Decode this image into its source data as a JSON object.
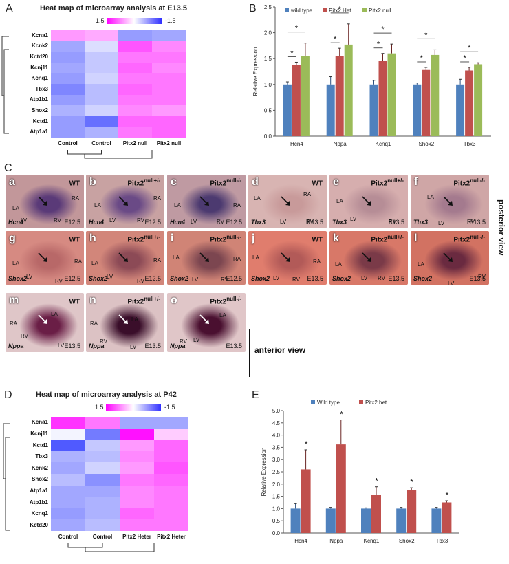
{
  "panels": {
    "A": "A",
    "B": "B",
    "C": "C",
    "D": "D",
    "E": "E"
  },
  "heatmap_A": {
    "title": "Heat map of microarray analysis at E13.5",
    "scale_max": "1.5",
    "scale_min": "-1.5",
    "genes": [
      "Kcna1",
      "Kcnk2",
      "Kctd20",
      "Kcnj11",
      "Kcnq1",
      "Tbx3",
      "Atp1b1",
      "Shox2",
      "Kctd1",
      "Atp1a1"
    ],
    "columns": [
      "Control",
      "Control",
      "Pitx2 null",
      "Pitx2 null"
    ],
    "values": [
      [
        0.6,
        0.5,
        -0.9,
        -0.8
      ],
      [
        -0.8,
        -0.3,
        1.0,
        0.7
      ],
      [
        -0.9,
        -0.5,
        0.8,
        0.8
      ],
      [
        -0.8,
        -0.5,
        0.9,
        0.7
      ],
      [
        -0.9,
        -0.4,
        0.8,
        0.8
      ],
      [
        -1.1,
        -0.6,
        0.9,
        0.8
      ],
      [
        -0.9,
        -0.6,
        0.8,
        0.8
      ],
      [
        -0.7,
        -0.4,
        0.7,
        0.6
      ],
      [
        -0.9,
        -1.3,
        0.9,
        0.9
      ],
      [
        -0.9,
        -0.7,
        0.8,
        0.9
      ]
    ]
  },
  "heatmap_D": {
    "title": "Heat map of microarray analysis at P42",
    "scale_max": "1.5",
    "scale_min": "-1.5",
    "genes": [
      "Kcna1",
      "Kcnj11",
      "Kctd1",
      "Tbx3",
      "Kcnk2",
      "Shox2",
      "Atp1a1",
      "Atp1b1",
      "Kcnq1",
      "Kctd20"
    ],
    "columns": [
      "Control",
      "Control",
      "Pitx2 Heter",
      "Pitx2 Heter"
    ],
    "values": [
      [
        1.2,
        0.8,
        -0.8,
        -0.8
      ],
      [
        -0.1,
        -1.2,
        1.4,
        0.3
      ],
      [
        -1.5,
        -0.5,
        0.6,
        0.9
      ],
      [
        -0.7,
        -0.6,
        0.7,
        0.9
      ],
      [
        -0.8,
        -0.4,
        0.6,
        1.0
      ],
      [
        -0.6,
        -1.0,
        0.8,
        0.9
      ],
      [
        -0.8,
        -0.8,
        0.7,
        0.8
      ],
      [
        -0.8,
        -0.7,
        0.7,
        0.8
      ],
      [
        -0.9,
        -0.7,
        0.9,
        0.8
      ],
      [
        -0.8,
        -0.6,
        0.8,
        0.8
      ]
    ]
  },
  "chart_data": [
    {
      "type": "bar",
      "panel": "B",
      "categories": [
        "Hcn4",
        "Nppa",
        "Kcnq1",
        "Shox2",
        "Tbx3"
      ],
      "ylabel": "Relative Expression",
      "ylim": [
        0,
        2.5
      ],
      "yticks": [
        "0.0",
        "0.5",
        "1.0",
        "1.5",
        "2.0",
        "2.5"
      ],
      "series": [
        {
          "name": "wild type",
          "color": "#4f81bd",
          "values": [
            1.0,
            1.0,
            1.0,
            1.0,
            1.0
          ],
          "err": [
            0.05,
            0.15,
            0.08,
            0.03,
            0.1
          ]
        },
        {
          "name": "Pitx2 Het",
          "color": "#c0504d",
          "values": [
            1.38,
            1.55,
            1.45,
            1.28,
            1.27
          ],
          "err": [
            0.05,
            0.15,
            0.15,
            0.05,
            0.06
          ]
        },
        {
          "name": "Pitx2 null",
          "color": "#9bbb59",
          "values": [
            1.55,
            1.77,
            1.6,
            1.57,
            1.39
          ],
          "err": [
            0.25,
            0.4,
            0.18,
            0.1,
            0.03
          ]
        }
      ],
      "significance": "*"
    },
    {
      "type": "bar",
      "panel": "E",
      "categories": [
        "Hcn4",
        "Nppa",
        "Kcnq1",
        "Shox2",
        "Tbx3"
      ],
      "ylabel": "Relative Expression",
      "ylim": [
        0,
        5.0
      ],
      "yticks": [
        "0.0",
        "0.5",
        "1.0",
        "1.5",
        "2.0",
        "2.5",
        "3.0",
        "3.5",
        "4.0",
        "4.5",
        "5.0"
      ],
      "series": [
        {
          "name": "Wild type",
          "color": "#4f81bd",
          "values": [
            1.0,
            1.0,
            1.0,
            1.0,
            1.0
          ],
          "err": [
            0.2,
            0.05,
            0.03,
            0.05,
            0.05
          ]
        },
        {
          "name": "Pitx2 het",
          "color": "#c0504d",
          "values": [
            2.6,
            3.62,
            1.57,
            1.75,
            1.25
          ],
          "err": [
            0.8,
            1.0,
            0.32,
            0.1,
            0.07
          ]
        }
      ],
      "significance": "*"
    }
  ],
  "photos": [
    {
      "letter": "a",
      "geno": "WT",
      "sup": "",
      "gene": "Hcn4",
      "stage": "E12.5",
      "bg": "#c2979a",
      "stain": "#5a3a78",
      "labels": [
        [
          "LA",
          10,
          44
        ],
        [
          "RA",
          96,
          30
        ],
        [
          "LV",
          22,
          62
        ],
        [
          "RV",
          70,
          62
        ]
      ]
    },
    {
      "letter": "b",
      "geno": "Pitx2",
      "sup": "null+/-",
      "gene": "Hcn4",
      "stage": "E12.5",
      "bg": "#c8a2a2",
      "stain": "#6a4a86",
      "labels": [
        [
          "LA",
          12,
          40
        ],
        [
          "RA",
          98,
          30
        ],
        [
          "LV",
          34,
          62
        ],
        [
          "RV",
          74,
          62
        ]
      ]
    },
    {
      "letter": "c",
      "geno": "Pitx2",
      "sup": "null-/-",
      "gene": "Hcn4",
      "stage": "E12.5",
      "bg": "#bf9aa2",
      "stain": "#4c3a70",
      "labels": [
        [
          "LA",
          10,
          40
        ],
        [
          "RA",
          96,
          40
        ],
        [
          "LV",
          34,
          64
        ],
        [
          "RV",
          72,
          64
        ]
      ]
    },
    {
      "letter": "d",
      "geno": "WT",
      "sup": "",
      "gene": "Tbx3",
      "stage": "E13.5",
      "bg": "#d8b4b2",
      "stain": "#c89a9a",
      "labels": [
        [
          "LA",
          8,
          30
        ],
        [
          "RA",
          80,
          24
        ],
        [
          "LV",
          46,
          64
        ],
        [
          "RV",
          84,
          64
        ]
      ]
    },
    {
      "letter": "e",
      "geno": "Pitx2",
      "sup": "null+/-",
      "gene": "Tbx3",
      "stage": "E13.5",
      "bg": "#d6aeae",
      "stain": "#b68d96",
      "labels": [
        [
          "LA",
          10,
          34
        ],
        [
          "LV",
          30,
          60
        ],
        [
          "RV",
          86,
          64
        ]
      ]
    },
    {
      "letter": "f",
      "geno": "Pitx2",
      "sup": "null-/-",
      "gene": "Tbx3",
      "stage": "E13.5",
      "bg": "#cfa6a6",
      "stain": "#a47a8e",
      "labels": [
        [
          "LA",
          24,
          28
        ],
        [
          "LV",
          40,
          66
        ],
        [
          "RV",
          82,
          64
        ]
      ]
    },
    {
      "letter": "g",
      "geno": "WT",
      "sup": "",
      "gene": "Shox2",
      "stage": "E12.5",
      "bg": "#d68a82",
      "stain": "#b86868",
      "labels": [
        [
          "LA",
          10,
          42
        ],
        [
          "RA",
          100,
          40
        ],
        [
          "LV",
          30,
          62
        ],
        [
          "RV",
          72,
          68
        ]
      ]
    },
    {
      "letter": "h",
      "geno": "Pitx2",
      "sup": "null+/-",
      "gene": "Shox2",
      "stage": "E12.5",
      "bg": "#d2867a",
      "stain": "#8c4a56",
      "labels": [
        [
          "LA",
          8,
          42
        ],
        [
          "RA",
          98,
          38
        ],
        [
          "LV",
          30,
          62
        ],
        [
          "RV",
          74,
          68
        ]
      ]
    },
    {
      "letter": "i",
      "geno": "Pitx2",
      "sup": "null-/-",
      "gene": "Shox2",
      "stage": "E12.5",
      "bg": "#d08476",
      "stain": "#7c4650",
      "labels": [
        [
          "LA",
          8,
          34
        ],
        [
          "RA",
          96,
          36
        ],
        [
          "LV",
          36,
          66
        ],
        [
          "RV",
          78,
          66
        ]
      ]
    },
    {
      "letter": "j",
      "geno": "WT",
      "sup": "",
      "gene": "Shox2",
      "stage": "E13.5",
      "bg": "#e07d6d",
      "stain": "#b25a58",
      "labels": [
        [
          "LA",
          6,
          34
        ],
        [
          "RA",
          94,
          40
        ],
        [
          "LV",
          36,
          64
        ],
        [
          "RV",
          64,
          66
        ]
      ]
    },
    {
      "letter": "k",
      "geno": "Pitx2",
      "sup": "null+/-",
      "gene": "Shox2",
      "stage": "E13.5",
      "bg": "#d87868",
      "stain": "#7a3a48",
      "labels": [
        [
          "LA",
          8,
          44
        ],
        [
          "LV",
          46,
          64
        ],
        [
          "RV",
          70,
          64
        ]
      ]
    },
    {
      "letter": "l",
      "geno": "Pitx2",
      "sup": "null-/-",
      "gene": "Shox2",
      "stage": "E13.5",
      "bg": "#d27262",
      "stain": "#6a2a40",
      "labels": [
        [
          "LA",
          10,
          44
        ],
        [
          "LV",
          54,
          72
        ],
        [
          "RV",
          98,
          62
        ]
      ]
    },
    {
      "letter": "m",
      "geno": "WT",
      "sup": "",
      "gene": "Nppa",
      "stage": "E13.5",
      "bg": "#dfc6c8",
      "stain": "#6a1e46",
      "labels": [
        [
          "LA",
          66,
          26
        ],
        [
          "RA",
          6,
          40
        ],
        [
          "RV",
          22,
          58
        ],
        [
          "LV",
          76,
          72
        ]
      ]
    },
    {
      "letter": "n",
      "geno": "Pitx2",
      "sup": "null+/-",
      "gene": "Nppa",
      "stage": "E13.5",
      "bg": "#dcc2c4",
      "stain": "#3a0e2a",
      "labels": [
        [
          "LA",
          66,
          34
        ],
        [
          "RA",
          6,
          40
        ],
        [
          "RV",
          20,
          66
        ],
        [
          "LV",
          64,
          74
        ]
      ]
    },
    {
      "letter": "o",
      "geno": "Pitx2",
      "sup": "null-/-",
      "gene": "Nppa",
      "stage": "E13.5",
      "bg": "#e0c6c8",
      "stain": "#4a1030",
      "labels": [
        [
          "LA",
          76,
          28
        ],
        [
          "RV",
          18,
          66
        ],
        [
          "LV",
          38,
          64
        ]
      ]
    }
  ],
  "views": {
    "posterior": "posterior view",
    "anterior": "anterior view"
  }
}
